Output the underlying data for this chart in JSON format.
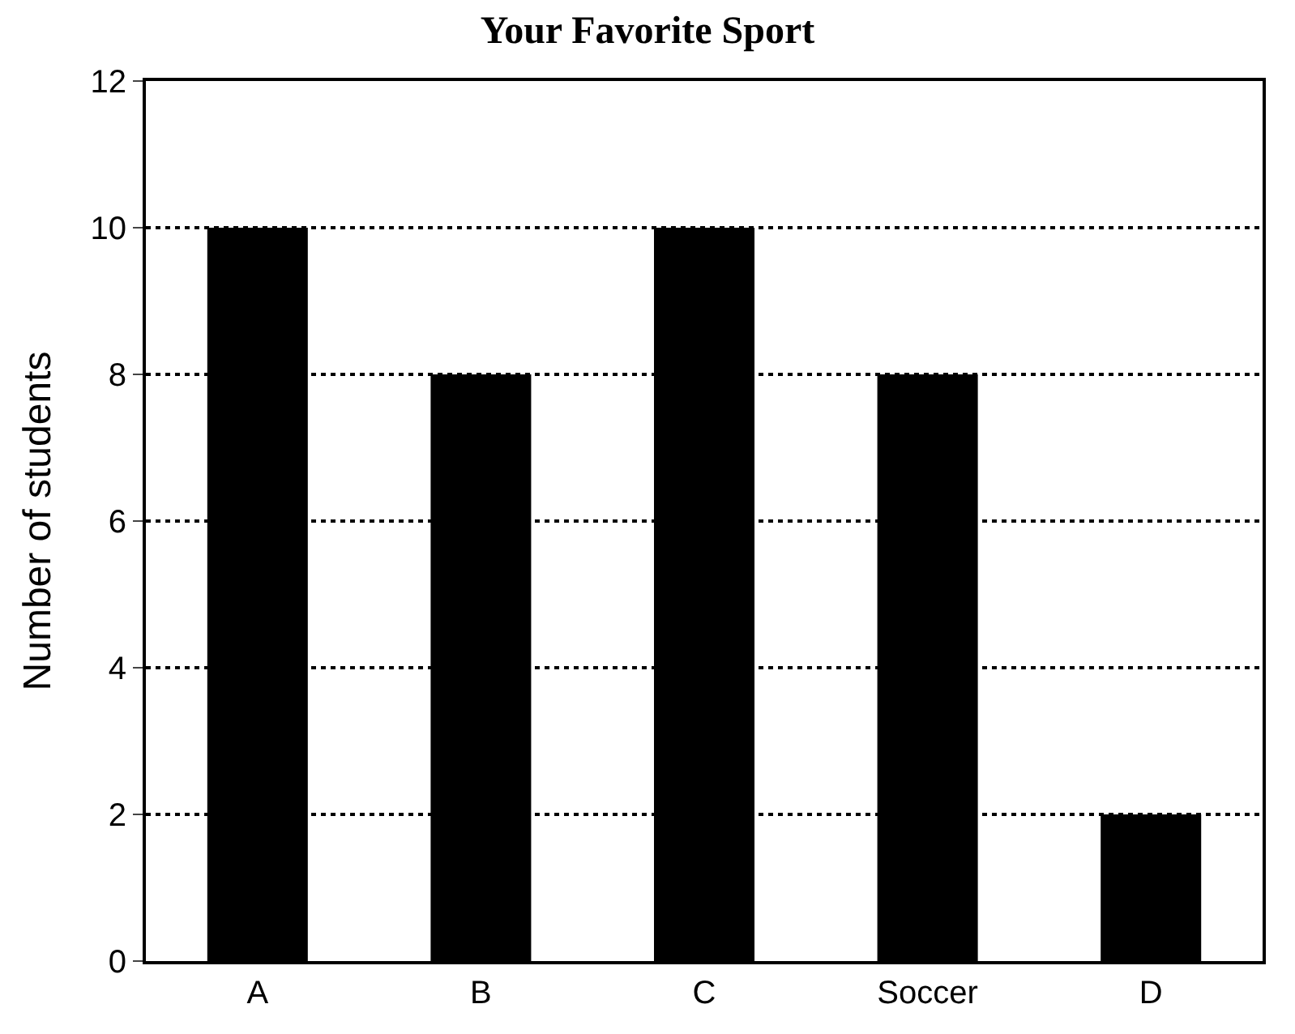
{
  "chart_data": {
    "type": "bar",
    "title": "Your Favorite Sport",
    "ylabel": "Number of students",
    "categories": [
      "A",
      "B",
      "C",
      "Soccer",
      "D"
    ],
    "values": [
      10,
      8,
      10,
      8,
      2
    ],
    "color": "#000000",
    "ylim": [
      0,
      12
    ],
    "yticks": [
      0,
      2,
      4,
      6,
      8,
      10,
      12
    ],
    "grid": "y",
    "line_style": "dotted"
  }
}
